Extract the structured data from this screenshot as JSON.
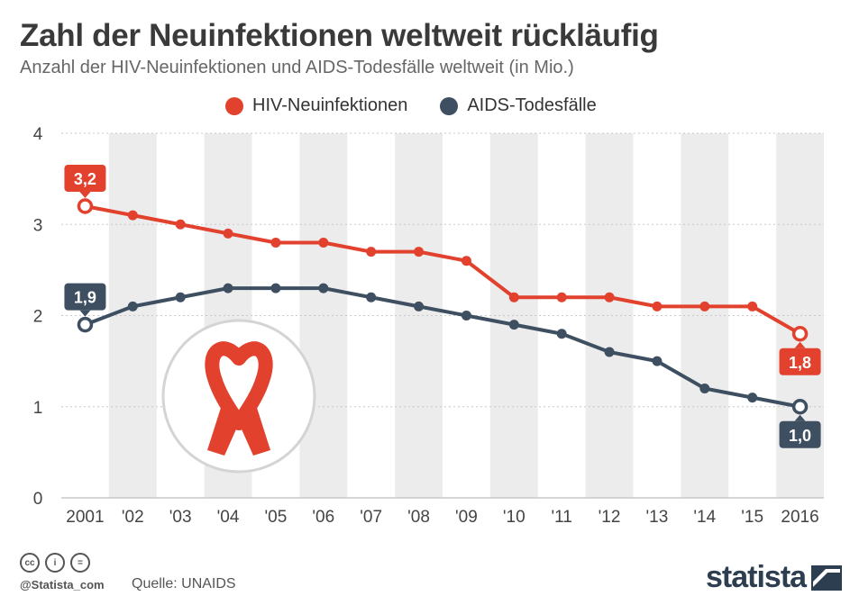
{
  "title": "Zahl der Neuinfektionen weltweit rückläufig",
  "subtitle": "Anzahl der HIV-Neuinfektionen und AIDS-Todesfälle weltweit (in Mio.)",
  "colors": {
    "hiv": "#e2412e",
    "aids": "#3e4f62",
    "band": "#ececec",
    "grid": "#c8c8c8"
  },
  "icons": {
    "ribbon": "red-ribbon-icon"
  },
  "chart_data": {
    "type": "line",
    "title": "Zahl der Neuinfektionen weltweit rückläufig",
    "subtitle": "Anzahl der HIV-Neuinfektionen und AIDS-Todesfälle weltweit (in Mio.)",
    "xlabel": "",
    "ylabel": "",
    "ylim": [
      0,
      4
    ],
    "yticks": [
      "0",
      "1",
      "2",
      "3",
      "4"
    ],
    "yticks_values": [
      0,
      1,
      2,
      3,
      4
    ],
    "categories": [
      "2001",
      "'02",
      "'03",
      "'04",
      "'05",
      "'06",
      "'07",
      "'08",
      "'09",
      "'10",
      "'11",
      "'12",
      "'13",
      "'14",
      "'15",
      "2016"
    ],
    "grid": true,
    "legend": "top-center",
    "series": [
      {
        "name": "HIV-Neuinfektionen",
        "values": [
          3.2,
          3.1,
          3.0,
          2.9,
          2.8,
          2.8,
          2.7,
          2.7,
          2.6,
          2.2,
          2.2,
          2.2,
          2.1,
          2.1,
          2.1,
          1.8
        ],
        "labels": {
          "start": "3,2",
          "end": "1,8"
        }
      },
      {
        "name": "AIDS-Todesfälle",
        "values": [
          1.9,
          2.1,
          2.2,
          2.3,
          2.3,
          2.3,
          2.2,
          2.1,
          2.0,
          1.9,
          1.8,
          1.6,
          1.5,
          1.2,
          1.1,
          1.0
        ],
        "labels": {
          "start": "1,9",
          "end": "1,0"
        }
      }
    ]
  },
  "footer": {
    "cc_icons": [
      "cc",
      "by",
      "nd"
    ],
    "cc_labels": [
      "cc",
      "i",
      "="
    ],
    "handle": "@Statista_com",
    "source": "Quelle: UNAIDS",
    "brand": "statista"
  }
}
